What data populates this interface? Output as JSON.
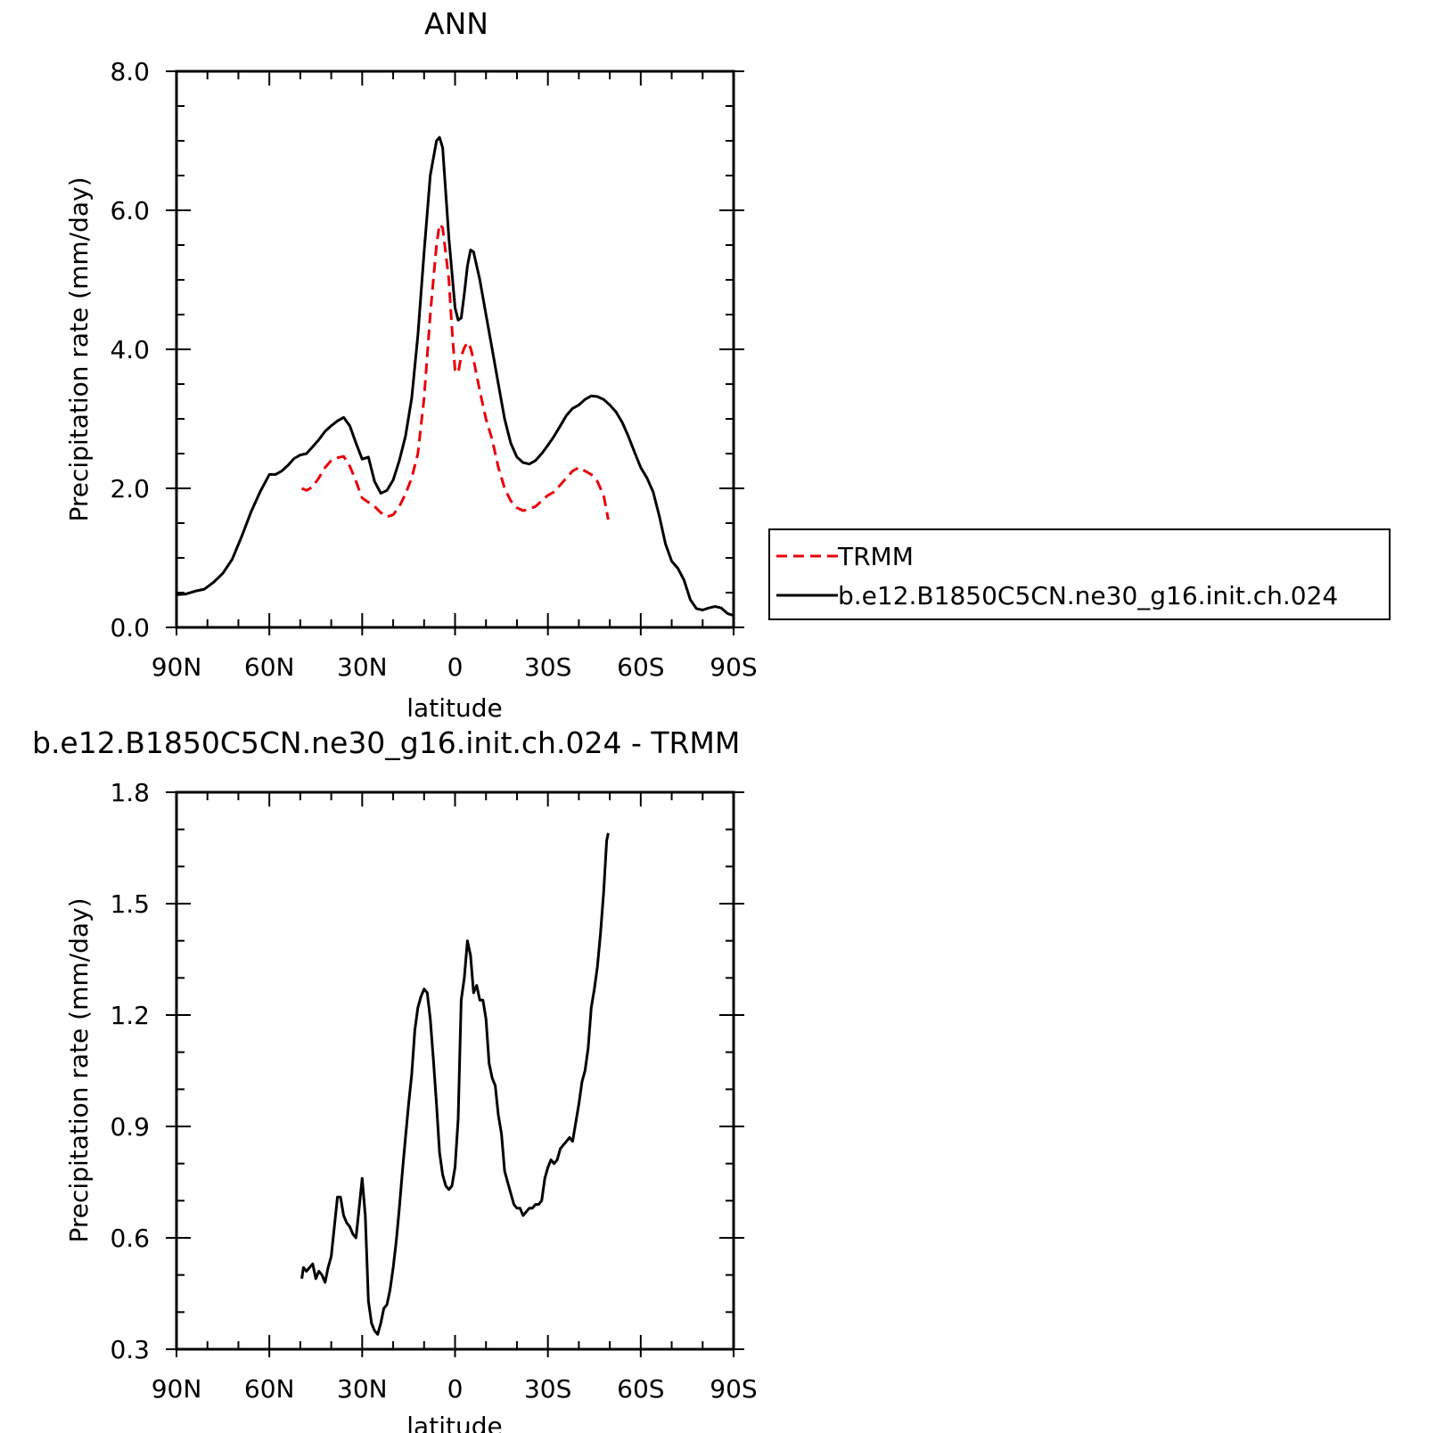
{
  "chart_data": [
    {
      "type": "line",
      "title": "ANN",
      "xlabel": "latitude",
      "ylabel": "Precipitation rate (mm/day)",
      "xlim": [
        90,
        -90
      ],
      "ylim": [
        0,
        8
      ],
      "xtick_values": [
        90,
        60,
        30,
        0,
        -30,
        -60,
        -90
      ],
      "xtick_labels": [
        "90N",
        "60N",
        "30N",
        "0",
        "30S",
        "60S",
        "90S"
      ],
      "ytick_values": [
        0,
        2,
        4,
        6,
        8
      ],
      "ytick_labels": [
        "0.0",
        "2.0",
        "4.0",
        "6.0",
        "8.0"
      ],
      "legend_position": "right",
      "legend": [
        "TRMM",
        "b.e12.B1850C5CN.ne30_g16.init.ch.024"
      ],
      "series": [
        {
          "name": "TRMM",
          "color": "#e8000b",
          "dash": "dashed",
          "x": [
            49.5,
            48,
            46,
            44,
            42,
            40,
            38,
            36,
            34,
            32,
            30,
            28,
            26,
            24,
            22,
            20,
            18,
            16,
            14,
            12,
            10,
            8,
            6,
            5,
            4,
            2,
            1,
            0,
            -1,
            -2,
            -3,
            -4,
            -5,
            -6,
            -8,
            -10,
            -12,
            -14,
            -16,
            -18,
            -20,
            -22,
            -24,
            -26,
            -28,
            -30,
            -32,
            -34,
            -36,
            -38,
            -40,
            -42,
            -44,
            -46,
            -48,
            -49.5
          ],
          "y": [
            2.0,
            1.97,
            2.02,
            2.15,
            2.3,
            2.4,
            2.44,
            2.46,
            2.32,
            2.1,
            1.86,
            1.8,
            1.74,
            1.65,
            1.59,
            1.62,
            1.74,
            1.92,
            2.15,
            2.5,
            3.3,
            4.5,
            5.5,
            5.8,
            5.75,
            5.0,
            4.3,
            3.7,
            3.66,
            3.9,
            4.02,
            4.1,
            4.02,
            3.85,
            3.4,
            3.0,
            2.7,
            2.3,
            2.0,
            1.82,
            1.72,
            1.68,
            1.7,
            1.74,
            1.82,
            1.9,
            1.95,
            2.05,
            2.15,
            2.25,
            2.3,
            2.25,
            2.2,
            2.1,
            1.9,
            1.55
          ]
        },
        {
          "name": "b.e12.B1850C5CN.ne30_g16.init.ch.024",
          "color": "#000000",
          "dash": "solid",
          "x": [
            90,
            87,
            84,
            81,
            78,
            75,
            72,
            69,
            66,
            63,
            60,
            58,
            56,
            54,
            52,
            50,
            48,
            46,
            44,
            42,
            40,
            38,
            36,
            34,
            32,
            30,
            28,
            26,
            24,
            22,
            20,
            18,
            16,
            14,
            12,
            10,
            8,
            6,
            5,
            4,
            2,
            0,
            -1,
            -2,
            -3,
            -4,
            -5,
            -6,
            -8,
            -10,
            -12,
            -14,
            -16,
            -18,
            -20,
            -22,
            -24,
            -26,
            -28,
            -30,
            -32,
            -34,
            -36,
            -38,
            -40,
            -42,
            -44,
            -46,
            -48,
            -50,
            -52,
            -54,
            -56,
            -58,
            -60,
            -62,
            -64,
            -66,
            -68,
            -70,
            -72,
            -74,
            -76,
            -78,
            -80,
            -82,
            -84,
            -86,
            -88,
            -90
          ],
          "y": [
            0.47,
            0.48,
            0.52,
            0.55,
            0.65,
            0.78,
            0.98,
            1.3,
            1.65,
            1.95,
            2.2,
            2.2,
            2.25,
            2.33,
            2.43,
            2.48,
            2.5,
            2.6,
            2.7,
            2.82,
            2.9,
            2.97,
            3.02,
            2.9,
            2.65,
            2.42,
            2.45,
            2.1,
            1.93,
            1.97,
            2.12,
            2.4,
            2.75,
            3.3,
            4.2,
            5.4,
            6.5,
            7.0,
            7.05,
            6.9,
            5.6,
            4.6,
            4.42,
            4.45,
            4.8,
            5.2,
            5.43,
            5.4,
            5.0,
            4.5,
            4.0,
            3.5,
            3.0,
            2.65,
            2.45,
            2.37,
            2.35,
            2.4,
            2.5,
            2.62,
            2.75,
            2.9,
            3.05,
            3.15,
            3.2,
            3.28,
            3.33,
            3.32,
            3.28,
            3.2,
            3.1,
            2.95,
            2.75,
            2.52,
            2.3,
            2.15,
            1.95,
            1.6,
            1.2,
            0.95,
            0.85,
            0.68,
            0.4,
            0.27,
            0.25,
            0.28,
            0.3,
            0.28,
            0.2,
            0.17
          ]
        }
      ]
    },
    {
      "type": "line",
      "title": "b.e12.B1850C5CN.ne30_g16.init.ch.024 - TRMM",
      "xlabel": "latitude",
      "ylabel": "Precipitation rate (mm/day)",
      "xlim": [
        90,
        -90
      ],
      "ylim": [
        0.3,
        1.8
      ],
      "xtick_values": [
        90,
        60,
        30,
        0,
        -30,
        -60,
        -90
      ],
      "xtick_labels": [
        "90N",
        "60N",
        "30N",
        "0",
        "30S",
        "60S",
        "90S"
      ],
      "ytick_values": [
        0.3,
        0.6,
        0.9,
        1.2,
        1.5,
        1.8
      ],
      "ytick_labels": [
        "0.3",
        "0.6",
        "0.9",
        "1.2",
        "1.5",
        "1.8"
      ],
      "series": [
        {
          "color": "#000000",
          "dash": "solid",
          "x": [
            49.5,
            49,
            48,
            47,
            46,
            45,
            44,
            43,
            42,
            41,
            40,
            39,
            38,
            37,
            36,
            35,
            34,
            33,
            32,
            31,
            30,
            29,
            28,
            27,
            26,
            25,
            24,
            23,
            22,
            21,
            20,
            19,
            18,
            17,
            16,
            15,
            14,
            13,
            12,
            11,
            10,
            9,
            8,
            7,
            6,
            5,
            4,
            3,
            2,
            1,
            0,
            -1,
            -2,
            -3,
            -4,
            -5,
            -6,
            -7,
            -8,
            -9,
            -10,
            -11,
            -12,
            -13,
            -14,
            -15,
            -16,
            -17,
            -18,
            -19,
            -20,
            -21,
            -22,
            -23,
            -24,
            -25,
            -26,
            -27,
            -28,
            -29,
            -30,
            -31,
            -32,
            -33,
            -34,
            -35,
            -36,
            -37,
            -38,
            -39,
            -40,
            -41,
            -42,
            -43,
            -44,
            -45,
            -46,
            -47,
            -48,
            -49,
            -49.5
          ],
          "y": [
            0.49,
            0.52,
            0.51,
            0.52,
            0.53,
            0.49,
            0.51,
            0.5,
            0.48,
            0.52,
            0.55,
            0.63,
            0.71,
            0.71,
            0.66,
            0.64,
            0.63,
            0.61,
            0.6,
            0.68,
            0.76,
            0.66,
            0.43,
            0.37,
            0.35,
            0.34,
            0.37,
            0.41,
            0.42,
            0.46,
            0.52,
            0.59,
            0.68,
            0.78,
            0.87,
            0.96,
            1.04,
            1.16,
            1.22,
            1.25,
            1.27,
            1.26,
            1.19,
            1.08,
            0.96,
            0.83,
            0.77,
            0.74,
            0.73,
            0.74,
            0.79,
            0.92,
            1.24,
            1.3,
            1.4,
            1.36,
            1.26,
            1.28,
            1.24,
            1.24,
            1.19,
            1.07,
            1.03,
            1.01,
            0.93,
            0.88,
            0.78,
            0.75,
            0.72,
            0.69,
            0.68,
            0.68,
            0.66,
            0.67,
            0.68,
            0.68,
            0.69,
            0.69,
            0.7,
            0.76,
            0.79,
            0.81,
            0.8,
            0.81,
            0.84,
            0.85,
            0.86,
            0.87,
            0.86,
            0.91,
            0.96,
            1.02,
            1.05,
            1.11,
            1.22,
            1.27,
            1.33,
            1.42,
            1.53,
            1.67,
            1.69
          ]
        }
      ]
    }
  ]
}
